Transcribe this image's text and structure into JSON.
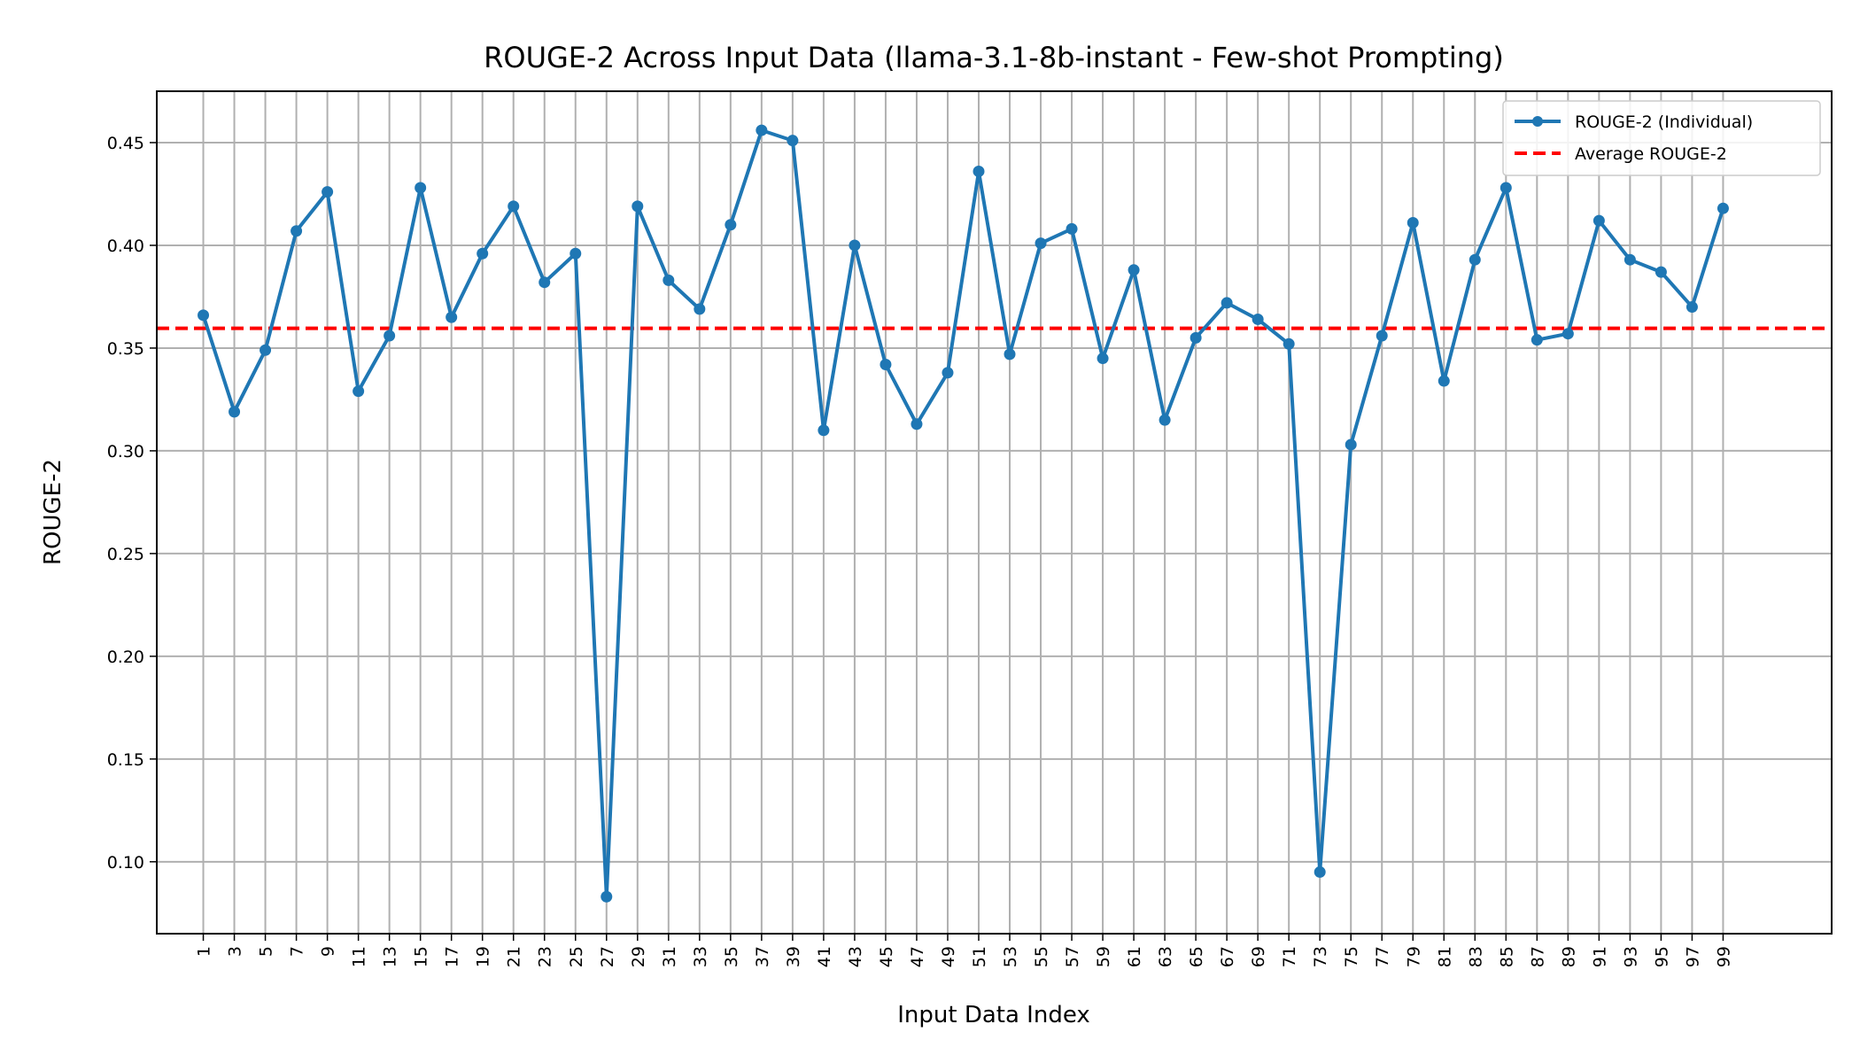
{
  "chart_data": {
    "type": "line",
    "title": "ROUGE-2 Across Input Data (llama-3.1-8b-instant - Few-shot Prompting)",
    "xlabel": "Input Data Index",
    "ylabel": "ROUGE-2",
    "xlim": [
      -1.5,
      52.5
    ],
    "ylim": [
      0.065,
      0.475
    ],
    "yticks": [
      0.1,
      0.15,
      0.2,
      0.25,
      0.3,
      0.35,
      0.4,
      0.45
    ],
    "ytick_labels": [
      "0.10",
      "0.15",
      "0.20",
      "0.25",
      "0.30",
      "0.35",
      "0.40",
      "0.45"
    ],
    "x": [
      "1",
      "3",
      "5",
      "7",
      "9",
      "11",
      "13",
      "15",
      "17",
      "19",
      "21",
      "23",
      "25",
      "27",
      "29",
      "31",
      "33",
      "35",
      "37",
      "39",
      "41",
      "43",
      "45",
      "47",
      "49",
      "51",
      "53",
      "55",
      "57",
      "59",
      "61",
      "63",
      "65",
      "67",
      "69",
      "71",
      "73",
      "75",
      "77",
      "79",
      "81",
      "83",
      "85",
      "87",
      "89",
      "91",
      "93",
      "95",
      "97",
      "99"
    ],
    "grid": true,
    "legend_position": "upper right",
    "series": [
      {
        "name": "ROUGE-2 (Individual)",
        "style": "line-marker",
        "color": "#1f77b4",
        "values": [
          0.366,
          0.319,
          0.349,
          0.407,
          0.426,
          0.329,
          0.356,
          0.428,
          0.365,
          0.396,
          0.419,
          0.382,
          0.396,
          0.083,
          0.419,
          0.383,
          0.369,
          0.41,
          0.456,
          0.451,
          0.31,
          0.4,
          0.342,
          0.313,
          0.338,
          0.436,
          0.347,
          0.401,
          0.408,
          0.345,
          0.388,
          0.315,
          0.355,
          0.372,
          0.364,
          0.352,
          0.095,
          0.303,
          0.356,
          0.411,
          0.334,
          0.393,
          0.428,
          0.354,
          0.357,
          0.412,
          0.393,
          0.387,
          0.37,
          0.418
        ]
      },
      {
        "name": "Average ROUGE-2",
        "style": "dashed",
        "color": "#ff0000",
        "value": 0.3596
      }
    ]
  }
}
